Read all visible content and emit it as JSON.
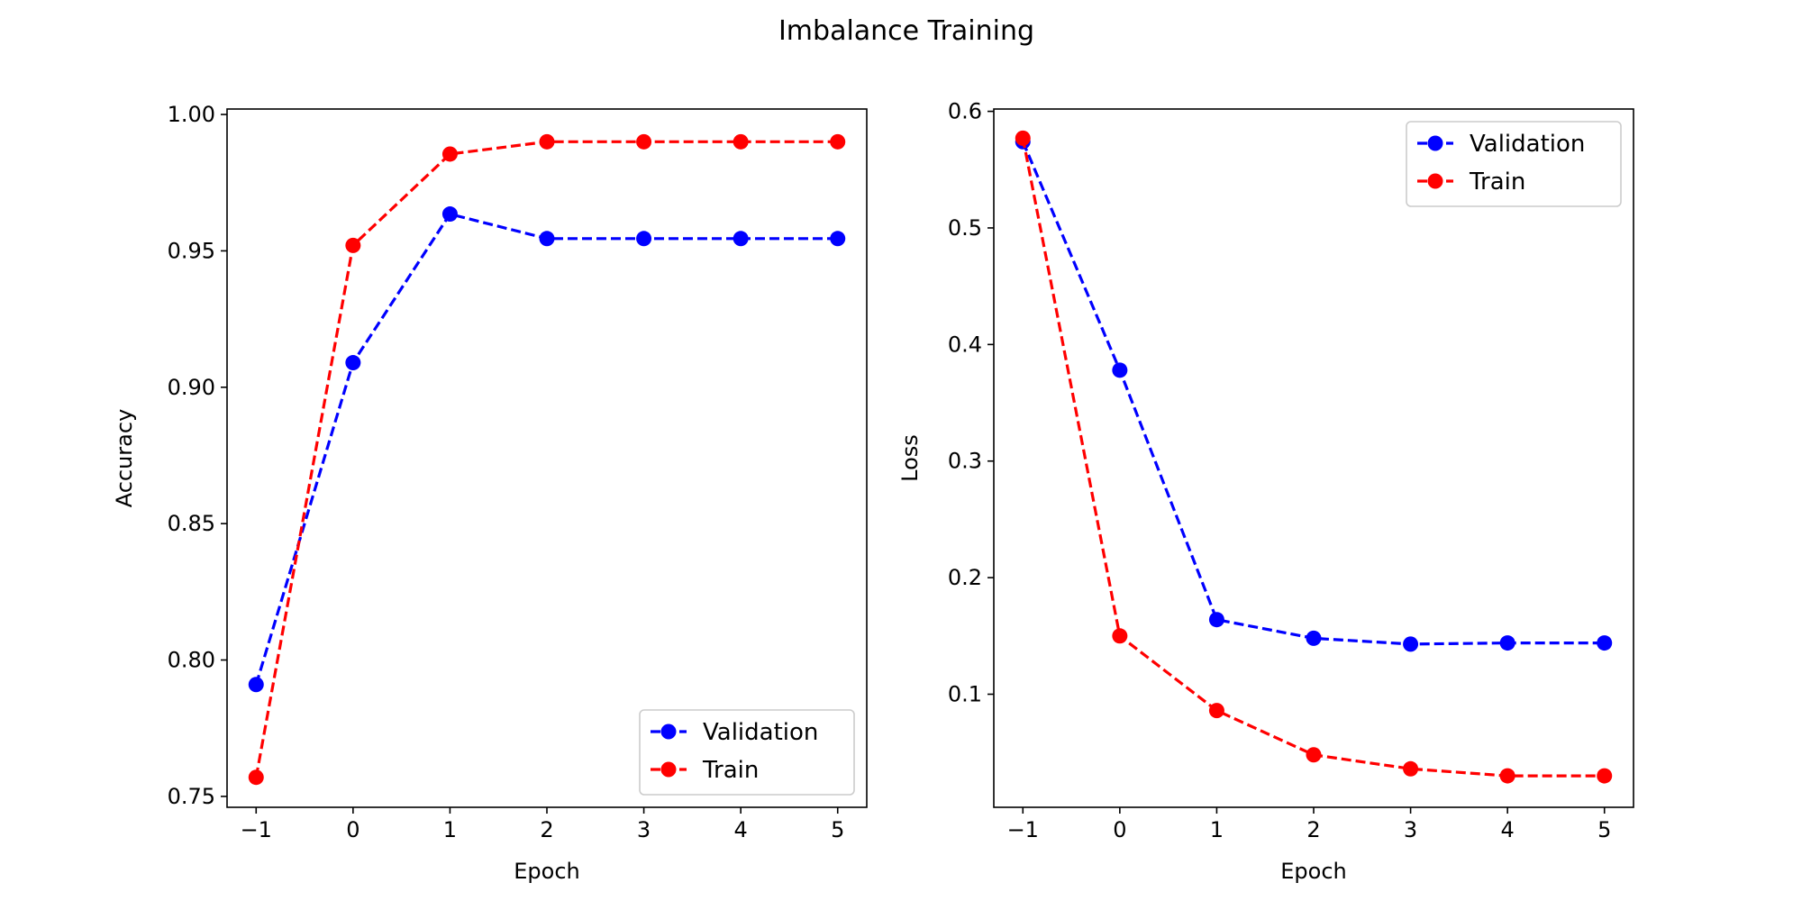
{
  "figure": {
    "title": "Imbalance Training"
  },
  "colors": {
    "validation": "#0000ff",
    "train": "#ff0000"
  },
  "chart_data": [
    {
      "type": "line",
      "xlabel": "Epoch",
      "ylabel": "Accuracy",
      "x": [
        -1,
        0,
        1,
        2,
        3,
        4,
        5
      ],
      "xlim": [
        -1.3,
        5.3
      ],
      "ylim": [
        0.746,
        1.002
      ],
      "xticks": [
        -1,
        0,
        1,
        2,
        3,
        4,
        5
      ],
      "xtick_labels": [
        "−1",
        "0",
        "1",
        "2",
        "3",
        "4",
        "5"
      ],
      "yticks": [
        0.75,
        0.8,
        0.85,
        0.9,
        0.95,
        1.0
      ],
      "ytick_labels": [
        "0.75",
        "0.80",
        "0.85",
        "0.90",
        "0.95",
        "1.00"
      ],
      "legend_position": "lower-right",
      "series": [
        {
          "name": "Validation",
          "color": "#0000ff",
          "line_style": "dashed",
          "marker": "circle",
          "values": [
            0.791,
            0.909,
            0.9635,
            0.9545,
            0.9545,
            0.9545,
            0.9545
          ]
        },
        {
          "name": "Train",
          "color": "#ff0000",
          "line_style": "dashed",
          "marker": "circle",
          "values": [
            0.757,
            0.952,
            0.9855,
            0.99,
            0.99,
            0.99,
            0.99
          ]
        }
      ]
    },
    {
      "type": "line",
      "xlabel": "Epoch",
      "ylabel": "Loss",
      "x": [
        -1,
        0,
        1,
        2,
        3,
        4,
        5
      ],
      "xlim": [
        -1.3,
        5.3
      ],
      "ylim": [
        0.003,
        0.602
      ],
      "xticks": [
        -1,
        0,
        1,
        2,
        3,
        4,
        5
      ],
      "xtick_labels": [
        "−1",
        "0",
        "1",
        "2",
        "3",
        "4",
        "5"
      ],
      "yticks": [
        0.1,
        0.2,
        0.3,
        0.4,
        0.5,
        0.6
      ],
      "ytick_labels": [
        "0.1",
        "0.2",
        "0.3",
        "0.4",
        "0.5",
        "0.6"
      ],
      "legend_position": "upper-right",
      "series": [
        {
          "name": "Validation",
          "color": "#0000ff",
          "line_style": "dashed",
          "marker": "circle",
          "values": [
            0.574,
            0.378,
            0.164,
            0.148,
            0.143,
            0.144,
            0.144
          ]
        },
        {
          "name": "Train",
          "color": "#ff0000",
          "line_style": "dashed",
          "marker": "circle",
          "values": [
            0.577,
            0.15,
            0.086,
            0.048,
            0.036,
            0.03,
            0.03
          ]
        }
      ]
    }
  ]
}
